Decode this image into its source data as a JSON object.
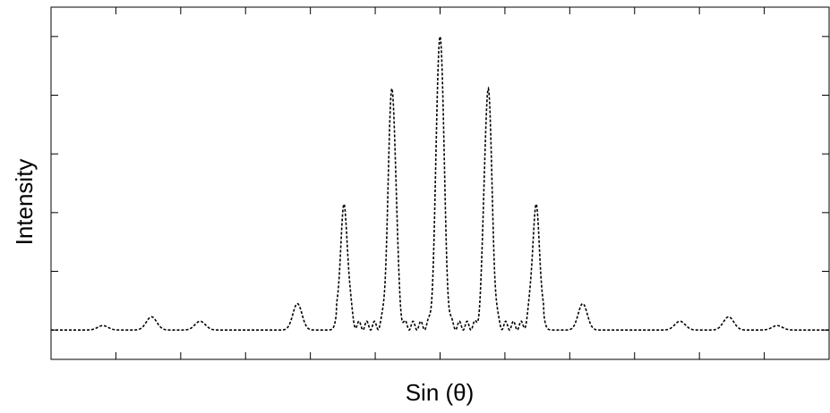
{
  "chart_data": {
    "type": "line",
    "title": "",
    "xlabel": "Sin (θ)",
    "ylabel": "Intensity",
    "xlim": [
      -6,
      6
    ],
    "ylim": [
      -0.1,
      1.1
    ],
    "x_ticks": [
      -5,
      -4,
      -3,
      -2,
      -1,
      0,
      1,
      2,
      3,
      4,
      5
    ],
    "y_ticks": [
      0,
      0.2,
      0.4,
      0.6,
      0.8,
      1.0
    ],
    "tick_labels_shown": false,
    "grid": false,
    "legend": "none",
    "line_style": "dotted",
    "line_color": "#000000",
    "peaks": [
      {
        "x": -5.2,
        "y": 0.015,
        "width": 0.08
      },
      {
        "x": -4.45,
        "y": 0.045,
        "width": 0.08
      },
      {
        "x": -3.7,
        "y": 0.03,
        "width": 0.08
      },
      {
        "x": -2.2,
        "y": 0.09,
        "width": 0.07
      },
      {
        "x": -1.48,
        "y": 0.4,
        "width": 0.06
      },
      {
        "x": -0.74,
        "y": 0.81,
        "width": 0.06
      },
      {
        "x": 0.0,
        "y": 1.0,
        "width": 0.06
      },
      {
        "x": 0.74,
        "y": 0.81,
        "width": 0.06
      },
      {
        "x": 1.48,
        "y": 0.4,
        "width": 0.06
      },
      {
        "x": 2.2,
        "y": 0.09,
        "width": 0.07
      },
      {
        "x": 3.7,
        "y": 0.03,
        "width": 0.08
      },
      {
        "x": 4.45,
        "y": 0.045,
        "width": 0.08
      },
      {
        "x": 5.2,
        "y": 0.015,
        "width": 0.08
      }
    ],
    "ripple_x_range": [
      -1.6,
      1.6
    ],
    "ripple_amplitude": 0.03
  }
}
